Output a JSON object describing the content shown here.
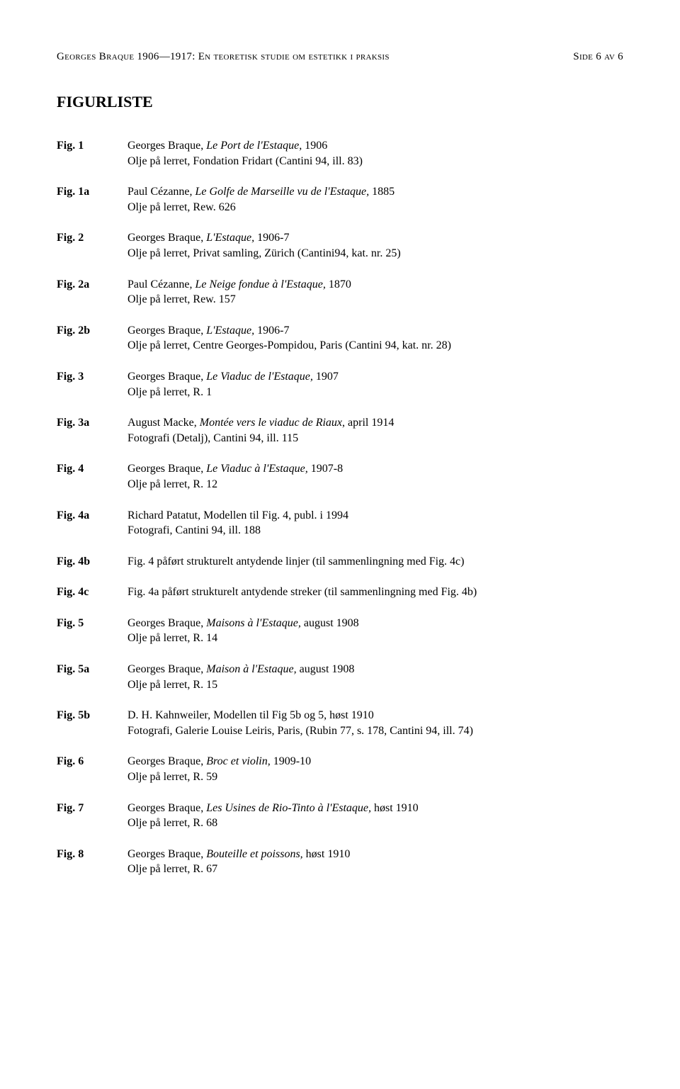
{
  "header": {
    "left_small_caps": "Georges Braque 1906—1917: En teoretisk studie om estetikk i praksis",
    "right_small_caps": "Side 6 av 6"
  },
  "section_title": "FIGURLISTE",
  "figures": [
    {
      "label": "Fig. 1",
      "prefix1": "Georges Braque, ",
      "italic1": "Le Port de l'Estaque,",
      "suffix1": " 1906",
      "line2": "Olje på lerret, Fondation Fridart (Cantini 94, ill. 83)"
    },
    {
      "label": "Fig. 1a",
      "prefix1": "Paul Cézanne, ",
      "italic1": "Le Golfe de Marseille vu de l'Estaque,",
      "suffix1": " 1885",
      "line2": "Olje på lerret, Rew. 626"
    },
    {
      "label": "Fig. 2",
      "prefix1": "Georges Braque, ",
      "italic1": "L'Estaque,",
      "suffix1": " 1906-7",
      "line2": "Olje på lerret, Privat samling, Zürich (Cantini94, kat. nr. 25)"
    },
    {
      "label": "Fig. 2a",
      "prefix1": "Paul Cézanne, ",
      "italic1": "Le Neige fondue à l'Estaque,",
      "suffix1": " 1870",
      "line2": "Olje på lerret, Rew. 157"
    },
    {
      "label": "Fig. 2b",
      "prefix1": "Georges Braque, ",
      "italic1": "L'Estaque,",
      "suffix1": " 1906-7",
      "line2": "Olje på lerret, Centre Georges-Pompidou, Paris (Cantini 94, kat. nr. 28)"
    },
    {
      "label": "Fig. 3",
      "prefix1": "Georges Braque, ",
      "italic1": "Le Viaduc de l'Estaque,",
      "suffix1": " 1907",
      "line2": "Olje på lerret, R. 1"
    },
    {
      "label": "Fig. 3a",
      "prefix1": "August Macke, ",
      "italic1": "Montée vers le viaduc de Riaux",
      "suffix1": ", april 1914",
      "line2": "Fotografi (Detalj), Cantini 94, ill. 115"
    },
    {
      "label": "Fig. 4",
      "prefix1": "Georges Braque, ",
      "italic1": "Le Viaduc à l'Estaque,",
      "suffix1": " 1907-8",
      "line2": "Olje på lerret, R. 12"
    },
    {
      "label": "Fig. 4a",
      "prefix1": "Richard Patatut, Modellen til Fig. 4, publ. i 1994",
      "italic1": "",
      "suffix1": "",
      "line2": "Fotografi, Cantini 94, ill. 188"
    },
    {
      "label": "Fig. 4b",
      "prefix1": "Fig. 4 påført strukturelt antydende linjer (til sammenlingning med Fig. 4c)",
      "italic1": "",
      "suffix1": "",
      "line2": ""
    },
    {
      "label": "Fig. 4c",
      "prefix1": "Fig. 4a påført strukturelt antydende streker (til sammenlingning med Fig. 4b)",
      "italic1": "",
      "suffix1": "",
      "line2": ""
    },
    {
      "label": "Fig. 5",
      "prefix1": "Georges Braque, ",
      "italic1": "Maisons à l'Estaque,",
      "suffix1": " august 1908",
      "line2": "Olje på lerret, R. 14"
    },
    {
      "label": "Fig. 5a",
      "prefix1": "Georges Braque, ",
      "italic1": "Maison à l'Estaque,",
      "suffix1": " august 1908",
      "line2": "Olje på lerret, R. 15"
    },
    {
      "label": "Fig. 5b",
      "prefix1": "D. H. Kahnweiler, Modellen til Fig 5b og 5, høst 1910",
      "italic1": "",
      "suffix1": "",
      "line2": "Fotografi, Galerie Louise Leiris, Paris, (Rubin 77, s. 178, Cantini 94, ill. 74)"
    },
    {
      "label": "Fig. 6",
      "prefix1": "Georges Braque, ",
      "italic1": "Broc et violin,",
      "suffix1": " 1909-10",
      "line2": "Olje på lerret, R. 59"
    },
    {
      "label": "Fig. 7",
      "prefix1": "Georges Braque, ",
      "italic1": "Les Usines de Rio-Tinto à l'Estaque,",
      "suffix1": " høst 1910",
      "line2": "Olje på lerret, R. 68"
    },
    {
      "label": "Fig. 8",
      "prefix1": "Georges Braque, ",
      "italic1": "Bouteille et poissons,",
      "suffix1": " høst 1910",
      "line2": "Olje på lerret, R. 67"
    }
  ]
}
